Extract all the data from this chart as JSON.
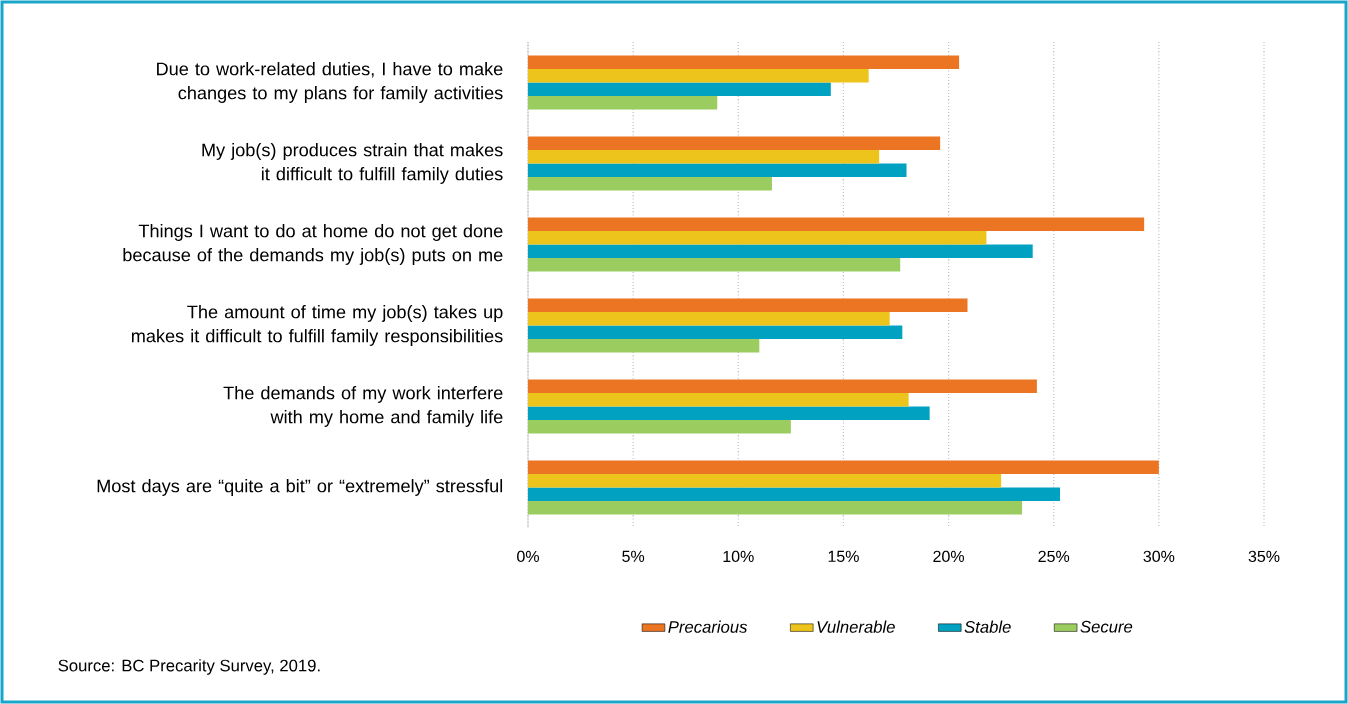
{
  "chart_data": {
    "type": "bar",
    "orientation": "horizontal",
    "categories": [
      "Due to work-related duties, I have to make changes to my plans for family activities",
      "My job(s) produces strain that makes it difficult to fulfill family duties",
      "Things I want to do at home do not get done because of the demands my job(s) puts on me",
      "The amount of time my job(s) takes up makes it difficult to fulfill family responsibilities",
      "The demands of my work interfere with my home and family life",
      "Most days are “quite a bit” or “extremely” stressful"
    ],
    "series": [
      {
        "name": "Precarious",
        "color": "#ec7524",
        "values": [
          20.5,
          19.6,
          29.3,
          20.9,
          24.2,
          30.0
        ]
      },
      {
        "name": "Vulnerable",
        "color": "#edc41b",
        "values": [
          16.2,
          16.7,
          21.8,
          17.2,
          18.1,
          22.5
        ]
      },
      {
        "name": "Stable",
        "color": "#00a1c1",
        "values": [
          14.4,
          18.0,
          24.0,
          17.8,
          19.1,
          25.3
        ]
      },
      {
        "name": "Secure",
        "color": "#9bcc5f",
        "values": [
          9.0,
          11.6,
          17.7,
          11.0,
          12.5,
          23.5
        ]
      }
    ],
    "xlim": [
      0,
      35
    ],
    "xticks": [
      {
        "value": 0,
        "label": "0%"
      },
      {
        "value": 5,
        "label": "5%"
      },
      {
        "value": 10,
        "label": "10%"
      },
      {
        "value": 15,
        "label": "15%"
      },
      {
        "value": 20,
        "label": "20%"
      },
      {
        "value": 25,
        "label": "25%"
      },
      {
        "value": 30,
        "label": "30%"
      },
      {
        "value": 35,
        "label": "35%"
      }
    ],
    "grid": "x",
    "legend": "bottom",
    "annotations": [
      "Source: BC Precarity Survey, 2019."
    ]
  }
}
